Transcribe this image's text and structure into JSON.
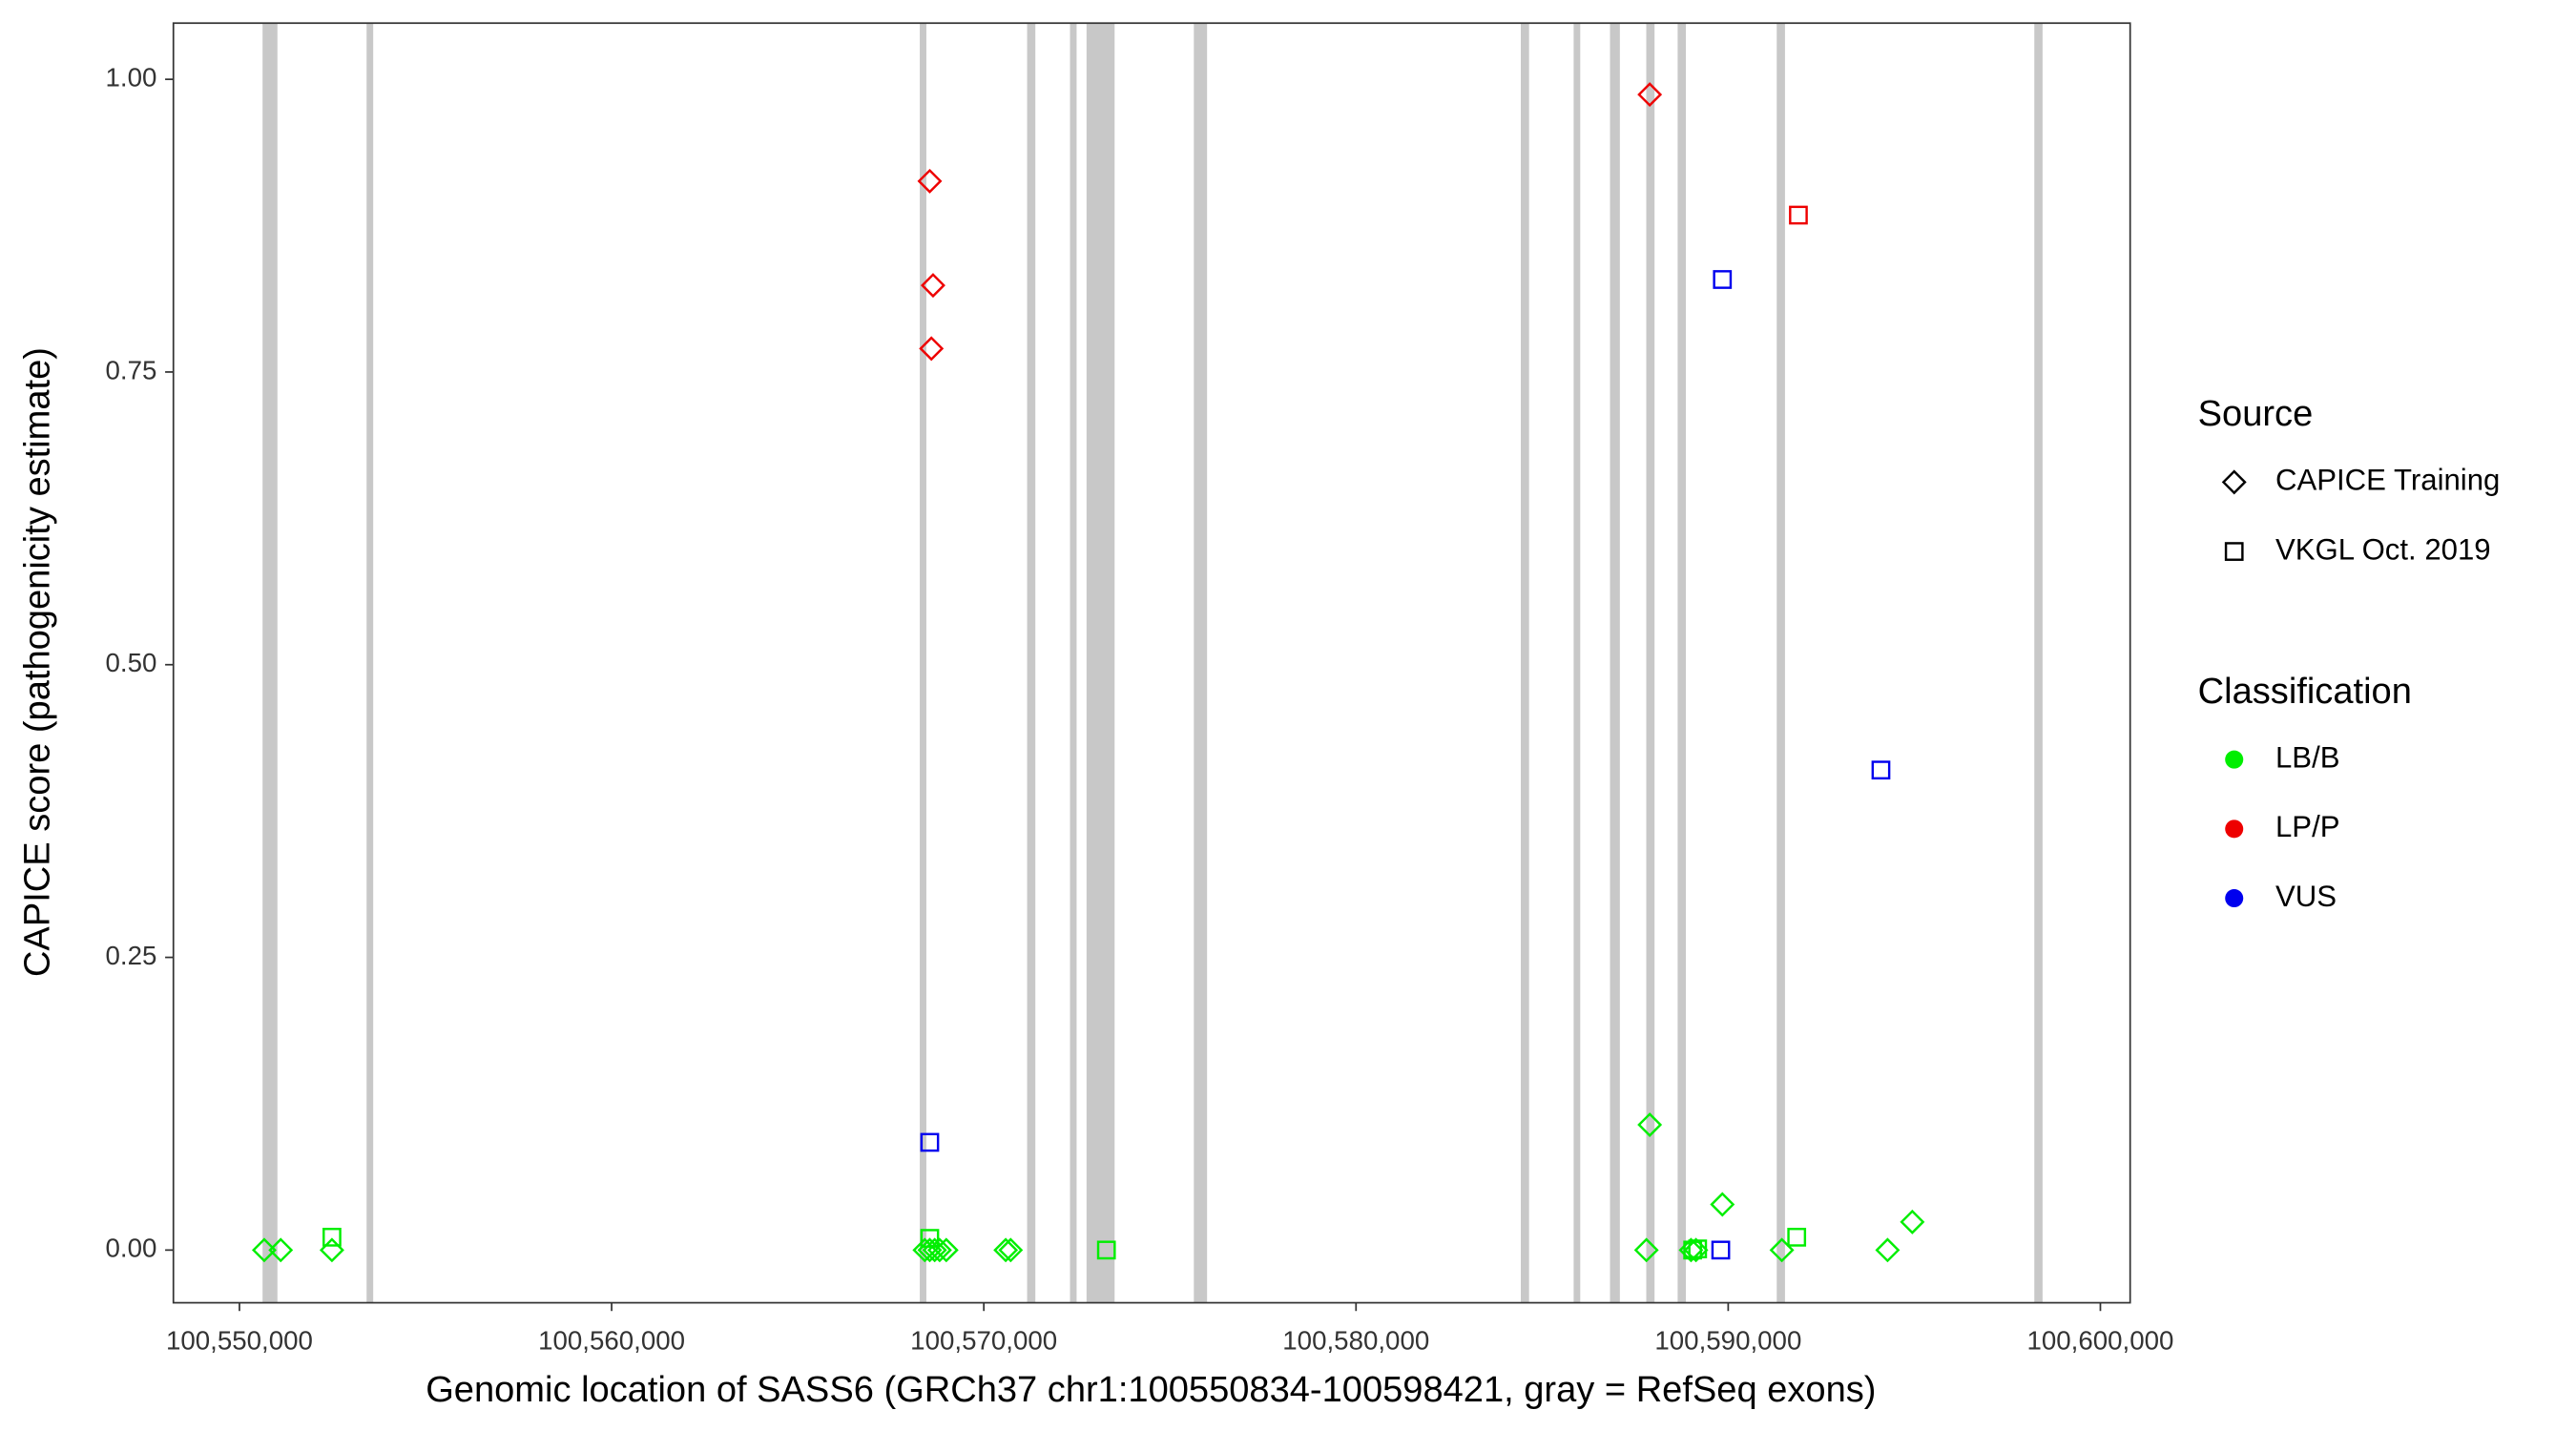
{
  "chart_data": {
    "type": "scatter",
    "xlabel": "Genomic location of SASS6 (GRCh37 chr1:100550834-100598421, gray = RefSeq exons)",
    "ylabel": "CAPICE score (pathogenicity estimate)",
    "xlim": [
      100548225,
      100600800
    ],
    "ylim": [
      -0.045,
      1.048
    ],
    "xticks": [
      {
        "value": 100550000,
        "label": "100,550,000"
      },
      {
        "value": 100560000,
        "label": "100,560,000"
      },
      {
        "value": 100570000,
        "label": "100,570,000"
      },
      {
        "value": 100580000,
        "label": "100,580,000"
      },
      {
        "value": 100590000,
        "label": "100,590,000"
      },
      {
        "value": 100600000,
        "label": "100,600,000"
      }
    ],
    "yticks": [
      {
        "value": 0,
        "label": "0.00"
      },
      {
        "value": 0.25,
        "label": "0.25"
      },
      {
        "value": 0.5,
        "label": "0.50"
      },
      {
        "value": 0.75,
        "label": "0.75"
      },
      {
        "value": 1,
        "label": "1.00"
      }
    ],
    "exon_color": "#c8c8c8",
    "exons": [
      [
        100550621,
        100551020
      ],
      [
        100553416,
        100553594
      ],
      [
        100568279,
        100568456
      ],
      [
        100571163,
        100571385
      ],
      [
        100572316,
        100572493
      ],
      [
        100572760,
        100573514
      ],
      [
        100575643,
        100575998
      ],
      [
        100584428,
        100584650
      ],
      [
        100585848,
        100586025
      ],
      [
        100586824,
        100587090
      ],
      [
        100587799,
        100588021
      ],
      [
        100588642,
        100588864
      ],
      [
        100591304,
        100591526
      ],
      [
        100598225,
        100598447
      ]
    ],
    "shape_legend": {
      "title": "Source",
      "items": [
        {
          "name": "CAPICE Training",
          "shape": "diamond"
        },
        {
          "name": "VKGL Oct. 2019",
          "shape": "square"
        }
      ]
    },
    "color_legend": {
      "title": "Classification",
      "items": [
        {
          "name": "LB/B",
          "color": "#00ee00"
        },
        {
          "name": "LP/P",
          "color": "#ee0000"
        },
        {
          "name": "VUS",
          "color": "#0000ee"
        }
      ]
    },
    "series": [
      {
        "shape": "diamond",
        "color": "#00ee00",
        "x": [
          100550666,
          100551109,
          100552485,
          100568414,
          100568547,
          100568680,
          100568813,
          100568991,
          100570588,
          100570721,
          100587803,
          100587892,
          100589001,
          100589134,
          100589844,
          100591442,
          100594282,
          100594947
        ],
        "y": [
          0,
          0,
          0,
          0,
          0,
          0,
          0,
          0,
          0,
          0,
          0,
          0.107,
          0,
          0,
          0.039,
          0,
          0,
          0.024
        ]
      },
      {
        "shape": "diamond",
        "color": "#ee0000",
        "x": [
          100568547,
          100568636,
          100568591,
          100587892
        ],
        "y": [
          0.913,
          0.824,
          0.77,
          0.987
        ]
      },
      {
        "shape": "square",
        "color": "#00ee00",
        "x": [
          100552485,
          100568547,
          100573294,
          100589046,
          100589179,
          100591841
        ],
        "y": [
          0.011,
          0.01,
          0,
          0,
          0.001,
          0.011
        ]
      },
      {
        "shape": "square",
        "color": "#ee0000",
        "x": [
          100591886
        ],
        "y": [
          0.884
        ]
      },
      {
        "shape": "square",
        "color": "#0000ee",
        "x": [
          100568547,
          100589844,
          100589800,
          100594104
        ],
        "y": [
          0.092,
          0.829,
          0,
          0.41
        ]
      }
    ]
  }
}
